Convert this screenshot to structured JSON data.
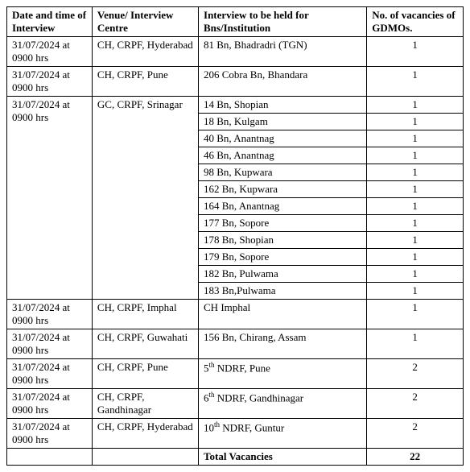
{
  "headers": {
    "date": "Date and time of Interview",
    "venue": "Venue/ Interview Centre",
    "institution": "Interview to be held for Bns/Institution",
    "vacancies": "No. of vacancies of GDMOs."
  },
  "cells": {
    "r1date": "31/07/2024 at 0900 hrs",
    "r1venue": "CH, CRPF, Hyderabad",
    "r1inst": "81 Bn, Bhadradri (TGN)",
    "r1vac": "1",
    "r2date": "31/07/2024 at 0900 hrs",
    "r2venue": "CH, CRPF, Pune",
    "r2inst": "206 Cobra Bn, Bhandara",
    "r2vac": "1",
    "r3date": "31/07/2024 at 0900 hrs",
    "r3venue": "GC, CRPF, Srinagar",
    "r3inst": "14 Bn, Shopian",
    "r3vac": "1",
    "r4inst": "18 Bn, Kulgam",
    "r4vac": "1",
    "r5inst": "40 Bn, Anantnag",
    "r5vac": "1",
    "r6inst": "46 Bn, Anantnag",
    "r6vac": "1",
    "r7inst": "98 Bn, Kupwara",
    "r7vac": "1",
    "r8inst": "162 Bn, Kupwara",
    "r8vac": "1",
    "r9inst": "164 Bn, Anantnag",
    "r9vac": "1",
    "r10inst": "177 Bn, Sopore",
    "r10vac": "1",
    "r11inst": "178 Bn, Shopian",
    "r11vac": "1",
    "r12inst": "179 Bn, Sopore",
    "r12vac": "1",
    "r13inst": "182 Bn, Pulwama",
    "r13vac": "1",
    "r14inst": "183 Bn,Pulwama",
    "r14vac": "1",
    "r15date": "31/07/2024 at 0900 hrs",
    "r15venue": "CH, CRPF, Imphal",
    "r15inst": "CH Imphal",
    "r15vac": "1",
    "r16date": "31/07/2024 at 0900 hrs",
    "r16venue": "CH, CRPF, Guwahati",
    "r16inst": "156 Bn, Chirang, Assam",
    "r16vac": "1",
    "r17date": "31/07/2024 at 0900 hrs",
    "r17venue": "CH, CRPF, Pune",
    "r17inst_pre": "5",
    "r17inst_sup": "th",
    "r17inst_post": " NDRF, Pune",
    "r17vac": "2",
    "r18date": "31/07/2024 at 0900 hrs",
    "r18venue": "CH, CRPF, Gandhinagar",
    "r18inst_pre": "6",
    "r18inst_sup": "th",
    "r18inst_post": " NDRF, Gandhinagar",
    "r18vac": "2",
    "r19date": "31/07/2024 at 0900 hrs",
    "r19venue": "CH, CRPF, Hyderabad",
    "r19inst_pre": "10",
    "r19inst_sup": "th",
    "r19inst_post": " NDRF, Guntur",
    "r19vac": "2",
    "total_label": "Total Vacancies",
    "total_value": "22"
  }
}
